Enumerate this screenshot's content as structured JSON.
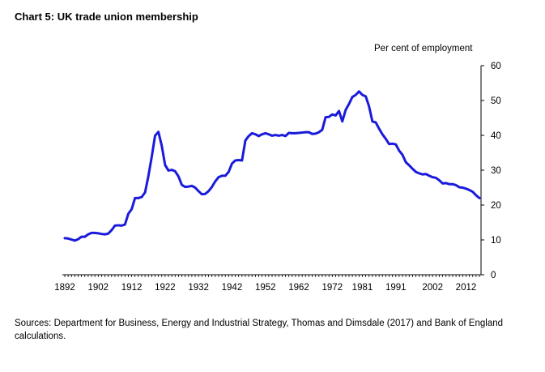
{
  "chart_data": {
    "type": "line",
    "title": "Chart 5:  UK trade union membership",
    "ylabel": "Per cent of employment",
    "y_axis_position": "right",
    "ylim": [
      0,
      60
    ],
    "yticks": [
      0,
      10,
      20,
      30,
      40,
      50,
      60
    ],
    "xlim": [
      1892,
      2016
    ],
    "xticks": [
      {
        "value": 1892,
        "label": "1892"
      },
      {
        "value": 1902,
        "label": "1902"
      },
      {
        "value": 1912,
        "label": "1912"
      },
      {
        "value": 1922,
        "label": "1922"
      },
      {
        "value": 1932,
        "label": "1932"
      },
      {
        "value": 1942,
        "label": "1942"
      },
      {
        "value": 1952,
        "label": "1952"
      },
      {
        "value": 1962,
        "label": "1962"
      },
      {
        "value": 1972,
        "label": "1972"
      },
      {
        "value": 1981,
        "label": "1981"
      },
      {
        "value": 1991,
        "label": "1991"
      },
      {
        "value": 2002,
        "label": "2002"
      },
      {
        "value": 2012,
        "label": "2012"
      }
    ],
    "grid": false,
    "series": [
      {
        "name": "Trade union membership",
        "color": "#1a1adb",
        "x": [
          1892,
          1893,
          1894,
          1895,
          1896,
          1897,
          1898,
          1899,
          1900,
          1901,
          1902,
          1903,
          1904,
          1905,
          1906,
          1907,
          1908,
          1909,
          1910,
          1911,
          1912,
          1913,
          1914,
          1915,
          1916,
          1917,
          1918,
          1919,
          1920,
          1921,
          1922,
          1923,
          1924,
          1925,
          1926,
          1927,
          1928,
          1929,
          1930,
          1931,
          1932,
          1933,
          1934,
          1935,
          1936,
          1937,
          1938,
          1939,
          1940,
          1941,
          1942,
          1943,
          1944,
          1945,
          1946,
          1947,
          1948,
          1949,
          1950,
          1951,
          1952,
          1953,
          1954,
          1955,
          1956,
          1957,
          1958,
          1959,
          1960,
          1961,
          1962,
          1963,
          1964,
          1965,
          1966,
          1967,
          1968,
          1969,
          1970,
          1971,
          1972,
          1973,
          1974,
          1975,
          1976,
          1977,
          1978,
          1979,
          1980,
          1981,
          1982,
          1983,
          1984,
          1985,
          1986,
          1987,
          1988,
          1989,
          1990,
          1991,
          1992,
          1993,
          1994,
          1995,
          1996,
          1997,
          1998,
          1999,
          2000,
          2001,
          2002,
          2003,
          2004,
          2005,
          2006,
          2007,
          2008,
          2009,
          2010,
          2011,
          2012,
          2013,
          2014,
          2015,
          2016
        ],
        "values": [
          10.5,
          10.4,
          10.1,
          9.8,
          10.2,
          10.9,
          10.9,
          11.6,
          12.0,
          12.0,
          11.9,
          11.7,
          11.6,
          11.8,
          12.8,
          14.1,
          14.2,
          14.1,
          14.4,
          17.5,
          18.8,
          22.0,
          22.0,
          22.3,
          23.6,
          28.3,
          33.8,
          39.9,
          41.0,
          37.0,
          31.5,
          29.9,
          30.1,
          29.7,
          28.2,
          25.8,
          25.2,
          25.3,
          25.5,
          25.0,
          24.0,
          23.1,
          23.2,
          24.0,
          25.2,
          26.8,
          28.0,
          28.4,
          28.4,
          29.5,
          31.9,
          32.8,
          32.9,
          32.8,
          38.5,
          39.8,
          40.6,
          40.3,
          39.8,
          40.3,
          40.6,
          40.3,
          39.9,
          40.1,
          39.9,
          40.1,
          39.8,
          40.7,
          40.6,
          40.6,
          40.7,
          40.8,
          40.9,
          40.9,
          40.4,
          40.5,
          40.9,
          41.6,
          45.2,
          45.3,
          46.0,
          45.7,
          47.0,
          44.0,
          47.3,
          49.0,
          51.0,
          51.6,
          52.6,
          51.6,
          51.2,
          48.3,
          44.0,
          43.7,
          41.9,
          40.3,
          39.0,
          37.5,
          37.6,
          37.4,
          35.6,
          34.4,
          32.3,
          31.4,
          30.4,
          29.5,
          29.1,
          28.8,
          28.9,
          28.4,
          28.0,
          27.8,
          27.1,
          26.2,
          26.3,
          26.0,
          26.0,
          25.7,
          25.1,
          25.0,
          24.7,
          24.3,
          23.8,
          22.8,
          22.0
        ]
      }
    ]
  },
  "sources_text": "Sources:  Department for Business, Energy and Industrial Strategy, Thomas and Dimsdale (2017) and Bank of England calculations."
}
